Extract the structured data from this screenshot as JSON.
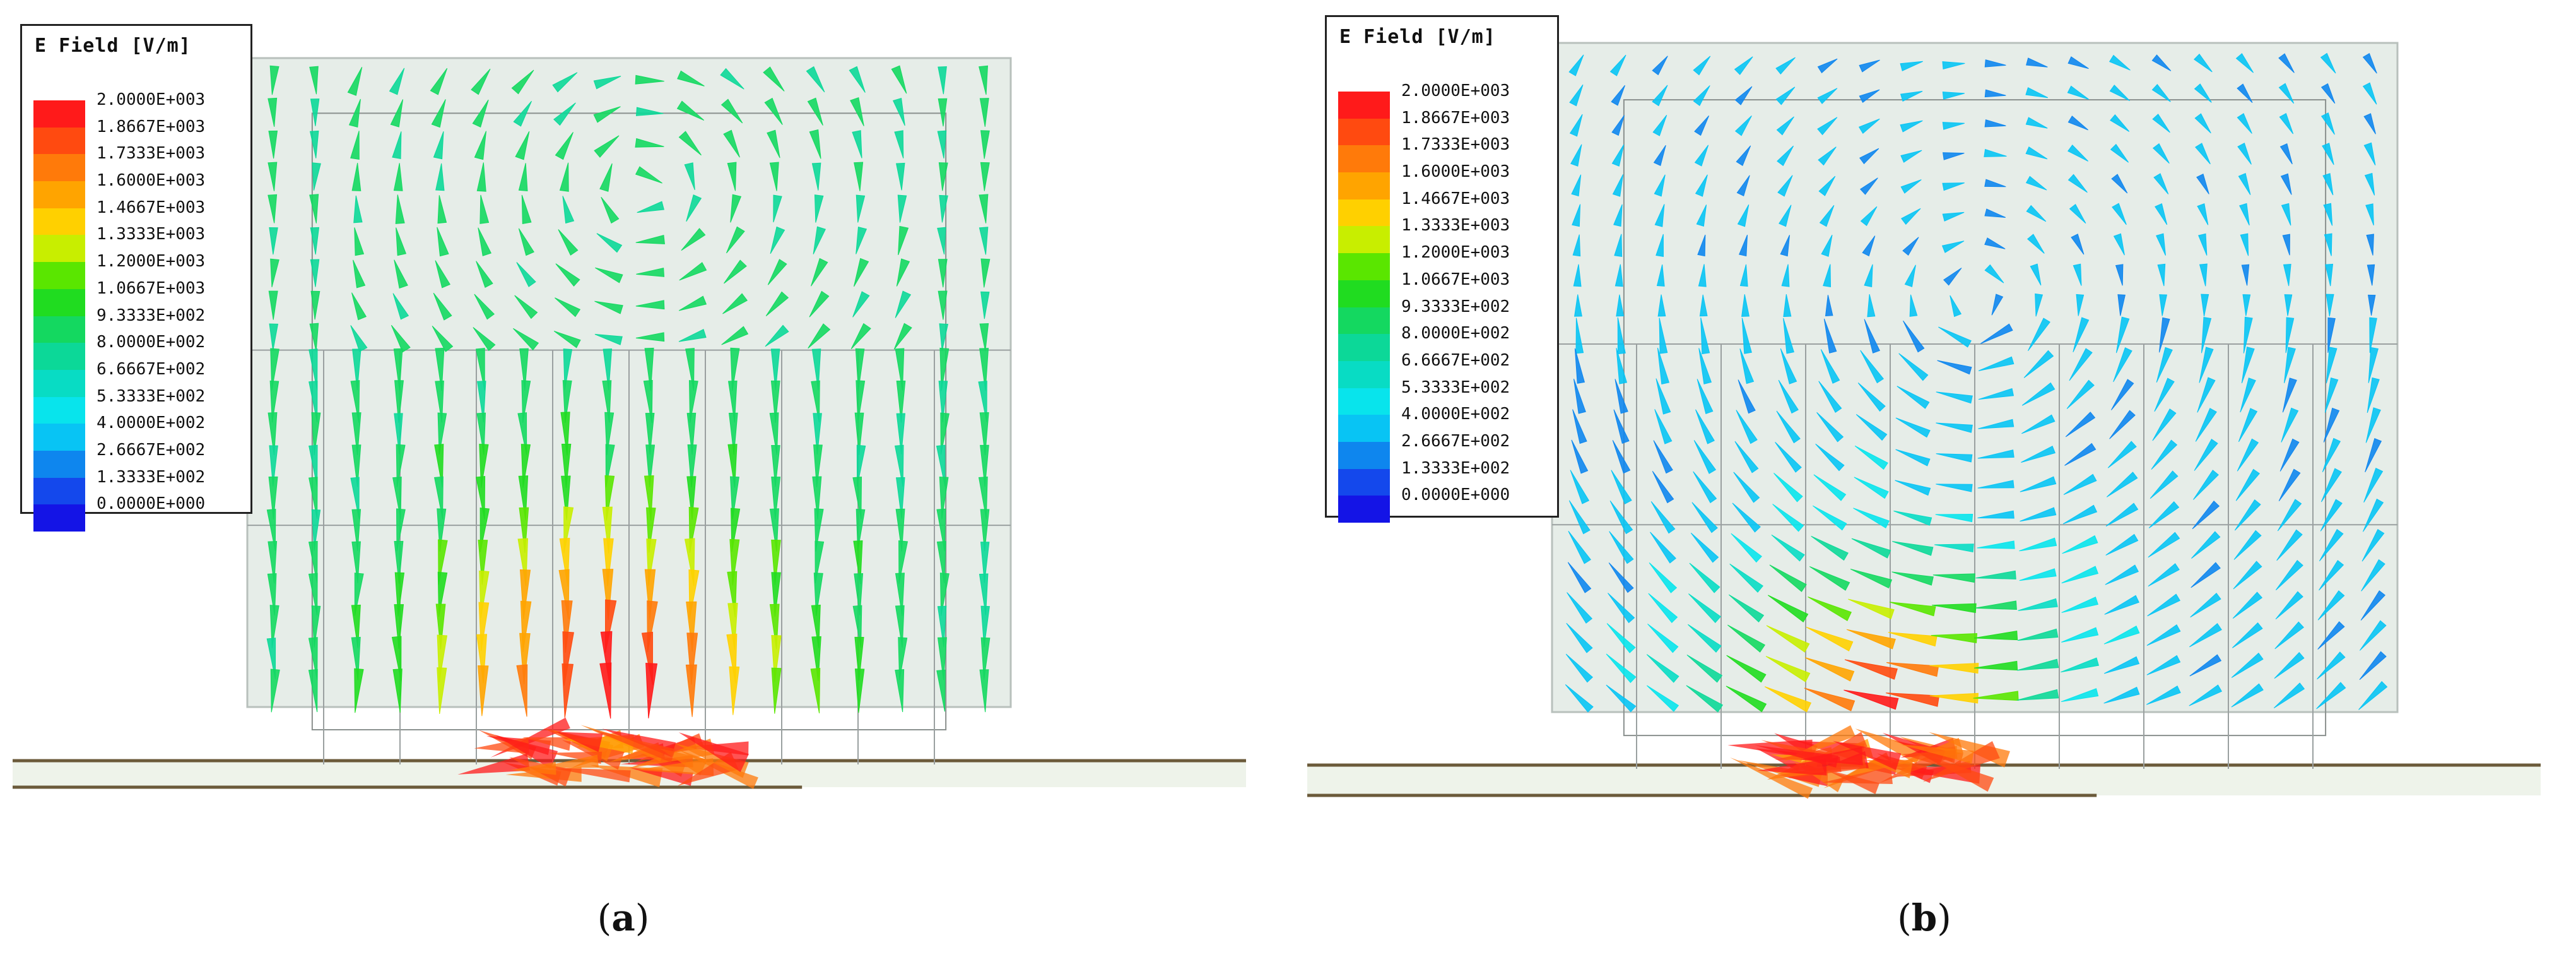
{
  "legend": {
    "title": "E Field [V/m]",
    "entries": [
      {
        "value": "2.0000E+003",
        "color": "#ff1a1a"
      },
      {
        "value": "1.8667E+003",
        "color": "#ff4a10"
      },
      {
        "value": "1.7333E+003",
        "color": "#ff7a0a"
      },
      {
        "value": "1.6000E+003",
        "color": "#ffa400"
      },
      {
        "value": "1.4667E+003",
        "color": "#ffd000"
      },
      {
        "value": "1.3333E+003",
        "color": "#c8ee00"
      },
      {
        "value": "1.2000E+003",
        "color": "#5ae600"
      },
      {
        "value": "1.0667E+003",
        "color": "#20dc20"
      },
      {
        "value": "9.3333E+002",
        "color": "#14d860"
      },
      {
        "value": "8.0000E+002",
        "color": "#0cd898"
      },
      {
        "value": "6.6667E+002",
        "color": "#08dcc4"
      },
      {
        "value": "5.3333E+002",
        "color": "#08e4ec"
      },
      {
        "value": "4.0000E+002",
        "color": "#08c4f4"
      },
      {
        "value": "2.6667E+002",
        "color": "#0e86ee"
      },
      {
        "value": "1.3333E+002",
        "color": "#1448ec"
      },
      {
        "value": "0.0000E+000",
        "color": "#1414e6"
      }
    ]
  },
  "panels": [
    {
      "id": "a",
      "label_open": "(",
      "label_letter": "a",
      "label_close": ")"
    },
    {
      "id": "b",
      "label_open": "(",
      "label_letter": "b",
      "label_close": ")"
    }
  ],
  "colors": {
    "box_fill": "#e6ede8",
    "substrate_fill": "#eef3ea",
    "substrate_edge": "#6b5a3a",
    "grid_line": "#9aa0a0"
  }
}
